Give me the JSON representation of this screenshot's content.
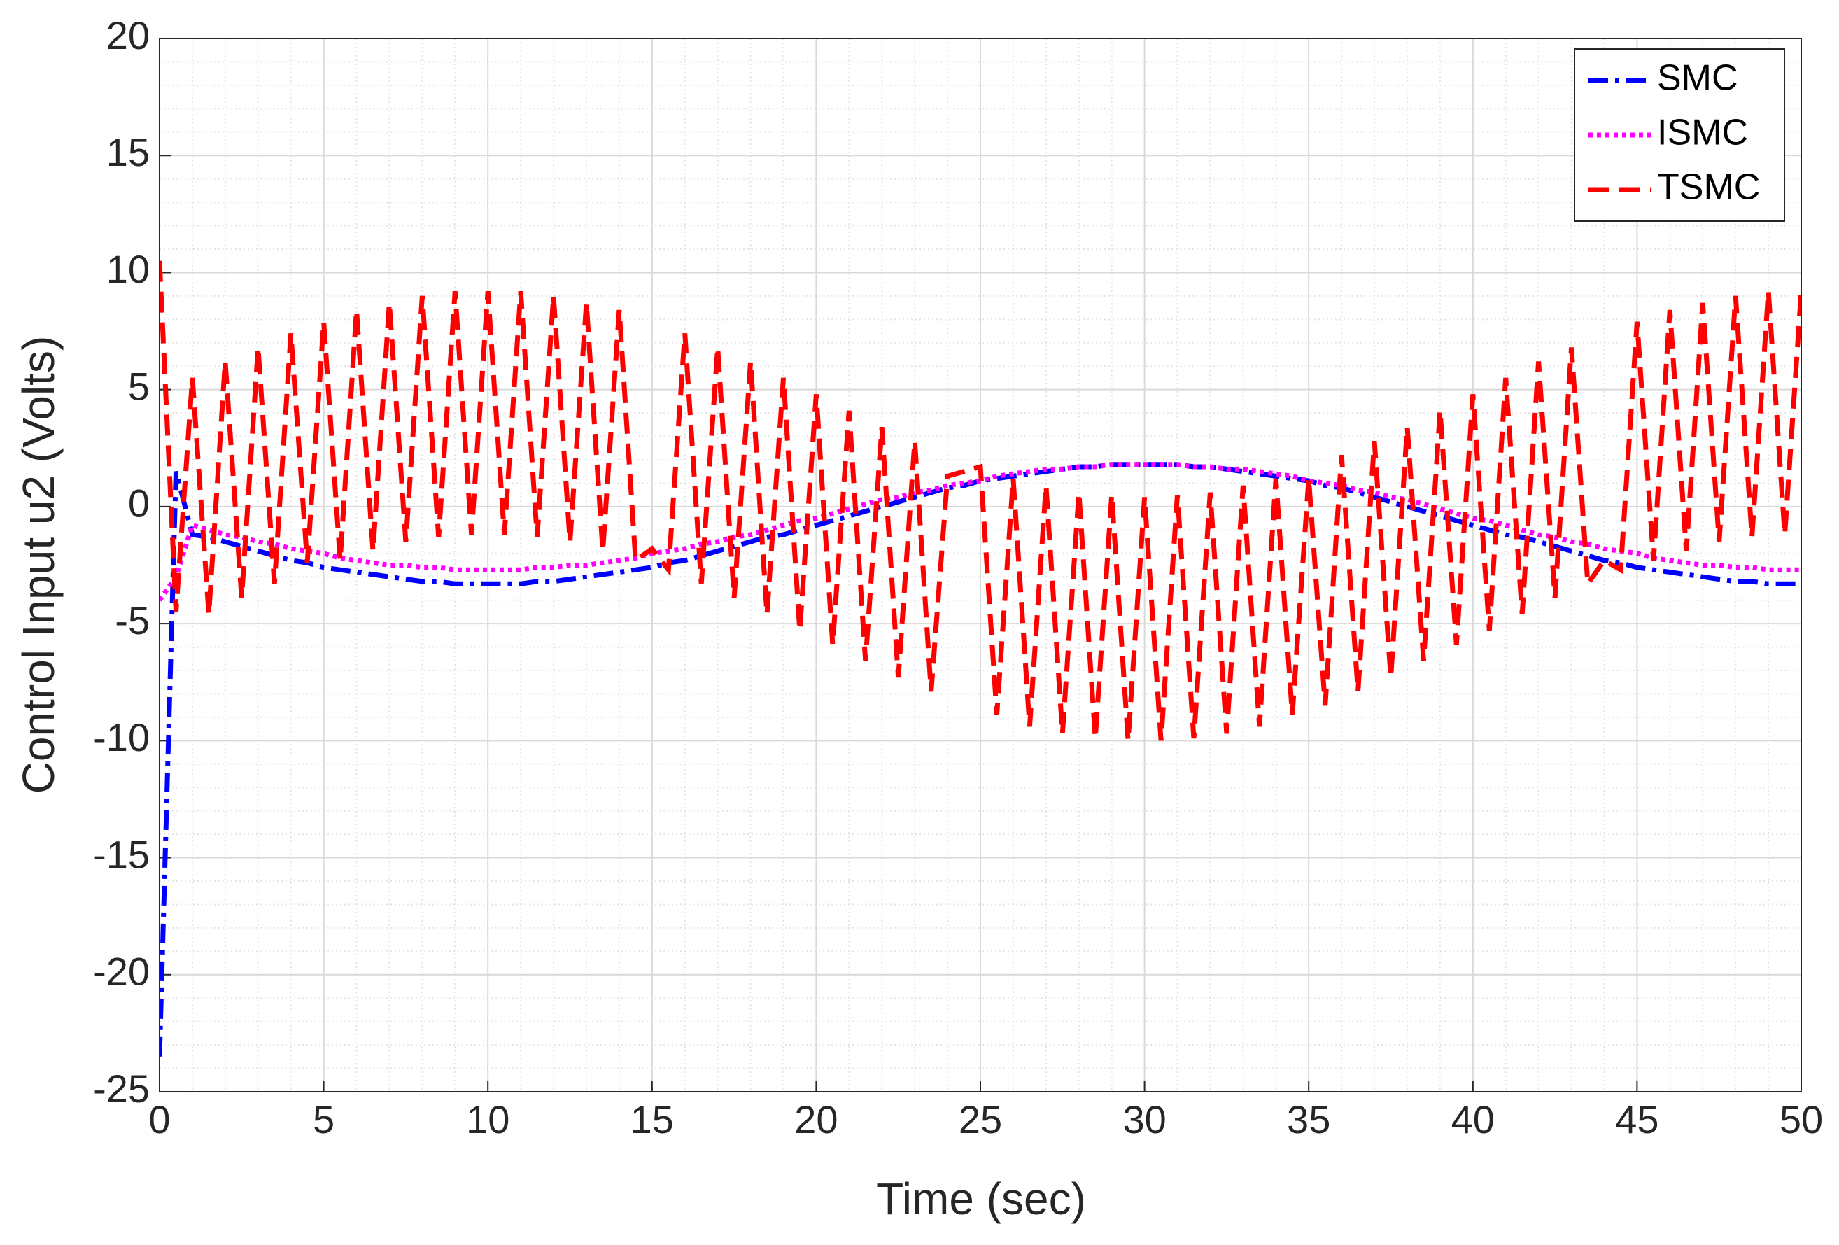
{
  "chart_data": {
    "type": "line",
    "xlabel": "Time (sec)",
    "ylabel": "Control Input u2 (Volts)",
    "xlim": [
      0,
      50
    ],
    "ylim": [
      -25,
      20
    ],
    "xticks": [
      0,
      5,
      10,
      15,
      20,
      25,
      30,
      35,
      40,
      45,
      50
    ],
    "yticks": [
      -25,
      -20,
      -15,
      -10,
      -5,
      0,
      5,
      10,
      15,
      20
    ],
    "grid": true,
    "legend": "upper right",
    "x": [
      0,
      0.5,
      1,
      1.5,
      2,
      2.5,
      3,
      3.5,
      4,
      4.5,
      5,
      5.5,
      6,
      6.5,
      7,
      7.5,
      8,
      8.5,
      9,
      9.5,
      10,
      10.5,
      11,
      11.5,
      12,
      12.5,
      13,
      13.5,
      14,
      14.5,
      15,
      15.5,
      16,
      16.5,
      17,
      17.5,
      18,
      18.5,
      19,
      19.5,
      20,
      20.5,
      21,
      21.5,
      22,
      22.5,
      23,
      23.5,
      24,
      24.5,
      25,
      25.5,
      26,
      26.5,
      27,
      27.5,
      28,
      28.5,
      29,
      29.5,
      30,
      30.5,
      31,
      31.5,
      32,
      32.5,
      33,
      33.5,
      34,
      34.5,
      35,
      35.5,
      36,
      36.5,
      37,
      37.5,
      38,
      38.5,
      39,
      39.5,
      40,
      40.5,
      41,
      41.5,
      42,
      42.5,
      43,
      43.5,
      44,
      44.5,
      45,
      45.5,
      46,
      46.5,
      47,
      47.5,
      48,
      48.5,
      49,
      49.5,
      50
    ],
    "series": [
      {
        "name": "SMC",
        "color": "#0000ff",
        "style": "dashdot",
        "values": [
          -23.5,
          1.5,
          -1.2,
          -1.3,
          -1.5,
          -1.7,
          -1.9,
          -2.1,
          -2.3,
          -2.4,
          -2.6,
          -2.7,
          -2.8,
          -2.9,
          -3.0,
          -3.1,
          -3.2,
          -3.2,
          -3.3,
          -3.3,
          -3.3,
          -3.3,
          -3.3,
          -3.2,
          -3.2,
          -3.1,
          -3.0,
          -2.9,
          -2.8,
          -2.7,
          -2.6,
          -2.4,
          -2.3,
          -2.1,
          -1.9,
          -1.7,
          -1.5,
          -1.3,
          -1.2,
          -1.0,
          -0.8,
          -0.6,
          -0.4,
          -0.2,
          0.0,
          0.2,
          0.4,
          0.6,
          0.8,
          0.9,
          1.1,
          1.2,
          1.3,
          1.4,
          1.5,
          1.6,
          1.7,
          1.7,
          1.8,
          1.8,
          1.8,
          1.8,
          1.8,
          1.7,
          1.7,
          1.6,
          1.5,
          1.4,
          1.3,
          1.2,
          1.1,
          0.9,
          0.8,
          0.6,
          0.4,
          0.2,
          0.0,
          -0.2,
          -0.4,
          -0.6,
          -0.8,
          -1.0,
          -1.2,
          -1.3,
          -1.5,
          -1.7,
          -1.9,
          -2.1,
          -2.3,
          -2.4,
          -2.6,
          -2.7,
          -2.8,
          -2.9,
          -3.0,
          -3.1,
          -3.2,
          -3.2,
          -3.3,
          -3.3,
          -3.3
        ]
      },
      {
        "name": "ISMC",
        "color": "#ff00ff",
        "style": "dotted",
        "values": [
          -4,
          -3,
          -0.8,
          -1.0,
          -1.2,
          -1.3,
          -1.5,
          -1.6,
          -1.8,
          -1.9,
          -2.0,
          -2.2,
          -2.3,
          -2.4,
          -2.5,
          -2.5,
          -2.6,
          -2.6,
          -2.7,
          -2.7,
          -2.7,
          -2.7,
          -2.7,
          -2.6,
          -2.6,
          -2.5,
          -2.5,
          -2.4,
          -2.3,
          -2.2,
          -2.0,
          -1.9,
          -1.8,
          -1.6,
          -1.5,
          -1.3,
          -1.2,
          -1.0,
          -0.8,
          -0.6,
          -0.5,
          -0.3,
          -0.1,
          0.1,
          0.3,
          0.4,
          0.6,
          0.7,
          0.9,
          1.0,
          1.1,
          1.3,
          1.4,
          1.5,
          1.6,
          1.6,
          1.7,
          1.7,
          1.8,
          1.8,
          1.8,
          1.8,
          1.8,
          1.7,
          1.7,
          1.6,
          1.6,
          1.5,
          1.4,
          1.3,
          1.1,
          1.0,
          0.9,
          0.7,
          0.6,
          0.4,
          0.3,
          0.1,
          -0.1,
          -0.3,
          -0.5,
          -0.6,
          -0.8,
          -1.0,
          -1.2,
          -1.3,
          -1.5,
          -1.6,
          -1.8,
          -1.9,
          -2.0,
          -2.2,
          -2.3,
          -2.4,
          -2.5,
          -2.5,
          -2.6,
          -2.6,
          -2.7,
          -2.7,
          -2.7
        ]
      },
      {
        "name": "TSMC",
        "color": "#ff0000",
        "style": "dashed",
        "values": [
          10.5,
          -4.5,
          5.5,
          -4.6,
          6.2,
          -3.9,
          6.8,
          -3.3,
          7.4,
          -2.4,
          7.9,
          -2.3,
          8.4,
          -1.9,
          8.7,
          -1.5,
          9.0,
          -1.3,
          9.2,
          -1.2,
          9.2,
          -1.2,
          9.2,
          -1.3,
          9.0,
          -1.5,
          8.7,
          -1.9,
          8.4,
          -2.3,
          -1.8,
          -2.7,
          7.4,
          -3.3,
          6.8,
          -3.9,
          6.2,
          -4.6,
          5.5,
          -5.3,
          4.8,
          -5.9,
          4.1,
          -6.6,
          3.4,
          -7.3,
          2.8,
          -7.9,
          1.3,
          1.5,
          1.7,
          -8.9,
          1.2,
          -9.4,
          0.9,
          -9.7,
          0.6,
          -9.9,
          0.5,
          -10.0,
          0.4,
          -10.0,
          0.5,
          -9.9,
          0.6,
          -9.7,
          0.9,
          -9.4,
          1.2,
          -8.9,
          1.2,
          -8.5,
          2.2,
          -7.9,
          2.8,
          -7.3,
          3.4,
          -6.6,
          4.1,
          -5.9,
          4.8,
          -5.3,
          5.5,
          -4.6,
          6.2,
          -3.9,
          6.8,
          -3.3,
          -2.3,
          -2.7,
          7.9,
          -2.3,
          8.4,
          -1.9,
          8.7,
          -1.5,
          9.0,
          -1.3,
          9.2,
          -1.2,
          9.2
        ]
      }
    ]
  }
}
